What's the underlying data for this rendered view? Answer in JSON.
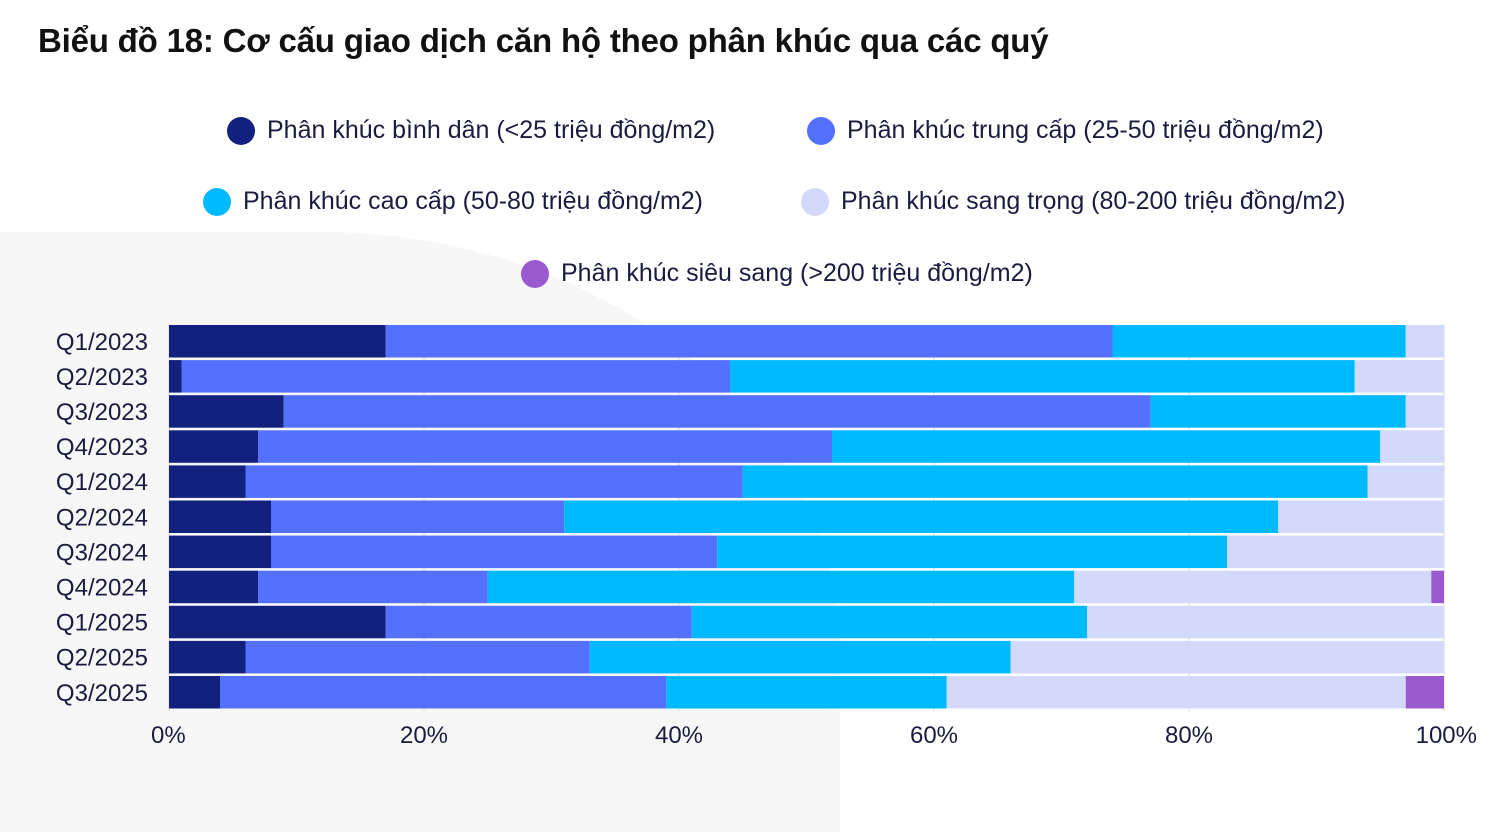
{
  "title": "Biểu đồ 18: Cơ cấu giao dịch căn hộ theo phân khúc qua các quý",
  "legend": [
    {
      "label": "Phân khúc bình dân (<25 triệu đồng/m2)",
      "color": "#12217e"
    },
    {
      "label": "Phân khúc trung cấp (25-50 triệu đồng/m2)",
      "color": "#5470ff"
    },
    {
      "label": "Phân khúc cao cấp (50-80 triệu đồng/m2)",
      "color": "#00baff"
    },
    {
      "label": "Phân khúc sang trọng (80-200 triệu đồng/m2)",
      "color": "#d2d9fb"
    },
    {
      "label": "Phân khúc siêu sang (>200 triệu đồng/m2)",
      "color": "#9b59d0"
    }
  ],
  "chart_data": {
    "type": "bar",
    "orientation": "horizontal",
    "stacked": "percent",
    "title": "Biểu đồ 18: Cơ cấu giao dịch căn hộ theo phân khúc qua các quý",
    "categories": [
      "Q1/2023",
      "Q2/2023",
      "Q3/2023",
      "Q4/2023",
      "Q1/2024",
      "Q2/2024",
      "Q3/2024",
      "Q4/2024",
      "Q1/2025",
      "Q2/2025",
      "Q3/2025"
    ],
    "series": [
      {
        "name": "Phân khúc bình dân (<25 triệu đồng/m2)",
        "color": "#12217e",
        "values": [
          17,
          1,
          9,
          7,
          6,
          8,
          8,
          7,
          17,
          6,
          4
        ]
      },
      {
        "name": "Phân khúc trung cấp (25-50 triệu đồng/m2)",
        "color": "#5470ff",
        "values": [
          57,
          43,
          68,
          45,
          39,
          23,
          35,
          18,
          24,
          27,
          35
        ]
      },
      {
        "name": "Phân khúc cao cấp (50-80 triệu đồng/m2)",
        "color": "#00baff",
        "values": [
          23,
          49,
          20,
          43,
          49,
          56,
          40,
          46,
          31,
          33,
          22
        ]
      },
      {
        "name": "Phân khúc sang trọng (80-200 triệu đồng/m2)",
        "color": "#d2d9fb",
        "values": [
          3,
          7,
          3,
          5,
          6,
          13,
          17,
          28,
          28,
          34,
          36
        ]
      },
      {
        "name": "Phân khúc siêu sang (>200 triệu đồng/m2)",
        "color": "#9b59d0",
        "values": [
          0,
          0,
          0,
          0,
          0,
          0,
          0,
          1,
          0,
          0,
          3
        ]
      }
    ],
    "xlim": [
      0,
      100
    ],
    "xticks": [
      "0%",
      "20%",
      "40%",
      "60%",
      "80%",
      "100%"
    ],
    "grid": true,
    "legend_position": "top"
  }
}
